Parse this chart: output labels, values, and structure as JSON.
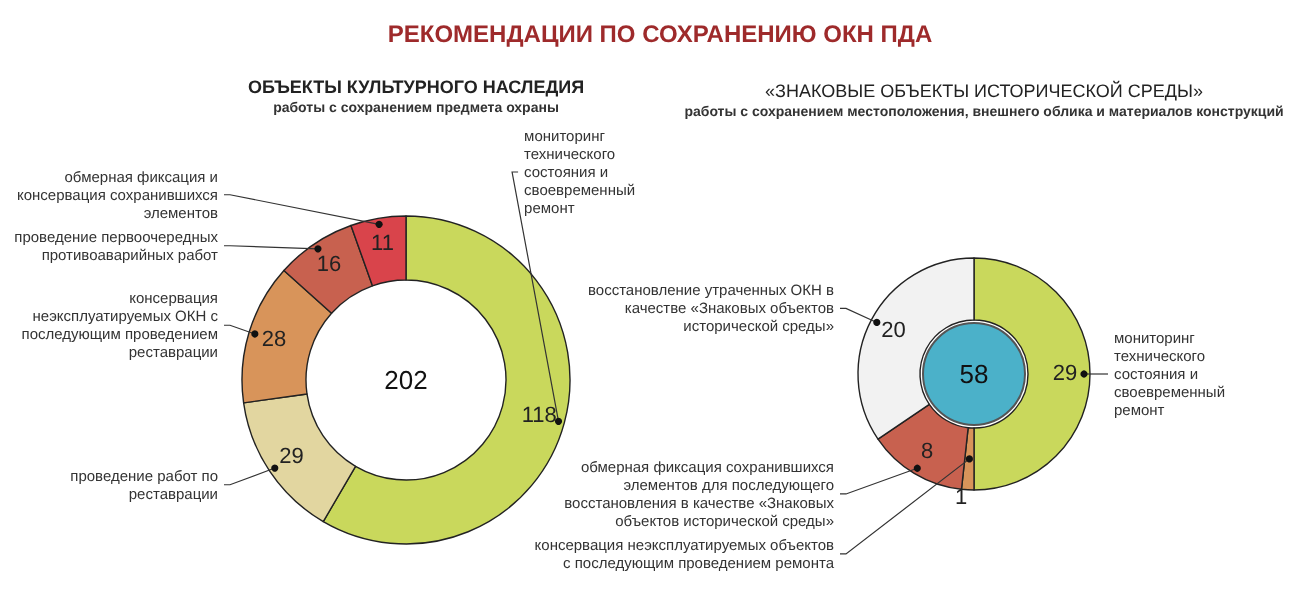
{
  "chart_data": [
    {
      "type": "other",
      "title": "РЕКОМЕНДАЦИИ ПО СОХРАНЕНИЮ ОКН ПДА"
    },
    {
      "type": "donut",
      "title": "ОБЪЕКТЫ КУЛЬТУРНОГО НАСЛЕДИЯ",
      "subtitle": "работы с сохранением предмета охраны",
      "categories": [
        "мониторинг технического состояния и своевременный ремонт",
        "проведение работ по реставрации",
        "консервация неэксплуатируемых ОКН с последующим проведением реставрации",
        "проведение первоочередных противоаварийных работ",
        "обмерная фиксация и консервация сохранившихся элементов"
      ],
      "values": [
        118,
        29,
        28,
        16,
        11
      ],
      "colors": [
        "#c9d85c",
        "#e2d6a0",
        "#d8945a",
        "#c8614f",
        "#d9444b"
      ],
      "data_labels": true,
      "annotations": [
        "202"
      ]
    },
    {
      "type": "donut",
      "title": "«ЗНАКОВЫЕ ОБЪЕКТЫ ИСТОРИЧЕСКОЙ СРЕДЫ»",
      "subtitle": "работы с сохранением местоположения, внешнего облика и материалов конструкций",
      "categories": [
        "мониторинг технического состояния и своевременный ремонт",
        "консервация неэксплуатируемых объектов с последующим проведением ремонта",
        "обмерная фиксация сохранившихся элементов для последующего восстановления в качестве «Знаковых объектов исторической среды»",
        "восстановление утраченных ОКН в качестве «Знаковых объектов исторической среды»"
      ],
      "values": [
        29,
        1,
        8,
        20
      ],
      "colors": [
        "#c9d85c",
        "#d8945a",
        "#c8614f",
        "#f2f2f2"
      ],
      "data_labels": true,
      "annotations": [
        "58"
      ]
    }
  ]
}
